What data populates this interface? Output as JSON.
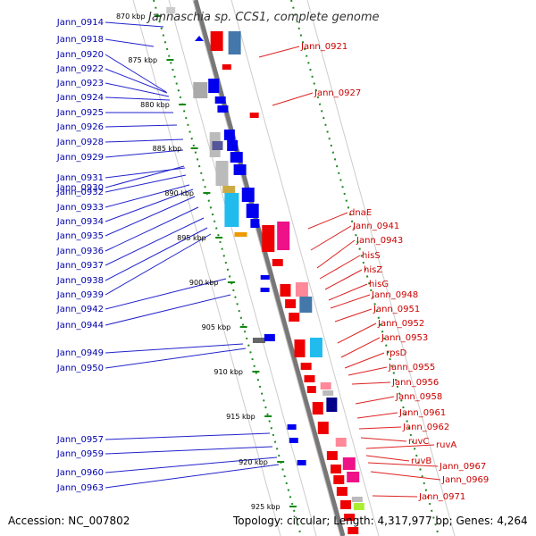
{
  "title": "Jannaschia sp. CCS1, complete genome",
  "footer": {
    "accession": "Accession: NC_007802",
    "summary": "Topology: circular; Length: 4,317,977 bp; Genes: 4,264"
  },
  "ticks": [
    "870 kbp",
    "875 kbp",
    "880 kbp",
    "885 kbp",
    "890 kbp",
    "895 kbp",
    "900 kbp",
    "905 kbp",
    "910 kbp",
    "915 kbp",
    "920 kbp",
    "925 kbp"
  ],
  "left_labels": [
    "Jann_0914",
    "Jann_0918",
    "Jann_0920",
    "Jann_0922",
    "Jann_0923",
    "Jann_0924",
    "Jann_0925",
    "Jann_0926",
    "Jann_0928",
    "Jann_0929",
    "Jann_0930",
    "Jann_0931",
    "Jann_0932",
    "Jann_0933",
    "Jann_0934",
    "Jann_0935",
    "Jann_0936",
    "Jann_0937",
    "Jann_0938",
    "Jann_0939",
    "Jann_0942",
    "Jann_0944",
    "Jann_0949",
    "Jann_0950",
    "Jann_0957",
    "Jann_0959",
    "Jann_0960",
    "Jann_0963"
  ],
  "right_labels": [
    "Jann_0921",
    "Jann_0927",
    "dnaE",
    "Jann_0941",
    "Jann_0943",
    "hisS",
    "hisZ",
    "hisG",
    "Jann_0948",
    "Jann_0951",
    "Jann_0952",
    "Jann_0953",
    "rpsD",
    "Jann_0955",
    "Jann_0956",
    "Jann_0958",
    "Jann_0961",
    "Jann_0962",
    "ruvC",
    "ruvA",
    "ruvB",
    "Jann_0967",
    "Jann_0969",
    "Jann_0971"
  ],
  "colors": {
    "forward_genes": "#0000ee",
    "reverse_genes": "#ee0000",
    "backbone": "#888888",
    "ticks": "#118811",
    "left_text": "#0000aa",
    "right_text": "#cc0000"
  }
}
